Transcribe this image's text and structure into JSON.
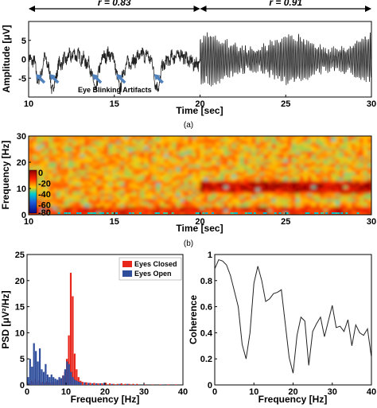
{
  "chart_data": [
    {
      "id": "a",
      "type": "line",
      "caption": "(a)",
      "xlabel": "Time [sec]",
      "ylabel": "Amplitude [μV]",
      "xlim": [
        10,
        30
      ],
      "xticks": [
        10,
        15,
        20,
        25,
        30
      ],
      "ylim": [
        -10,
        10
      ],
      "yticks": [
        -5,
        0,
        5
      ],
      "ytick_labels": [
        "-5",
        "0",
        "5"
      ],
      "annotation": "Eye Blinking Artifacts",
      "blink_times": [
        10.6,
        11.4,
        13.9,
        15.3,
        17.5
      ],
      "segments": [
        {
          "label": "r = 0.83",
          "x_start": 10,
          "x_end": 20
        },
        {
          "label": "r = 0.91",
          "x_start": 20,
          "x_end": 30
        }
      ],
      "arrow_color": "#4f81bd",
      "line_color": "#222222"
    },
    {
      "id": "b",
      "type": "heatmap",
      "caption": "(b)",
      "xlabel": "Time [sec]",
      "ylabel": "Frequency [Hz]",
      "xlim": [
        10,
        30
      ],
      "xticks": [
        10,
        15,
        20,
        25,
        30
      ],
      "ylim": [
        0,
        30
      ],
      "yticks": [
        0,
        10,
        20,
        30
      ],
      "colorbar_ticks": [
        0,
        -20,
        -40,
        -60,
        -80
      ],
      "colorbar_labels": [
        "0",
        "-20",
        "-40",
        "-60",
        "-80"
      ]
    },
    {
      "id": "c",
      "type": "bar",
      "xlabel": "Frequency [Hz]",
      "ylabel": "PSD [μV²/Hz]",
      "xlim": [
        0,
        40
      ],
      "xticks": [
        0,
        10,
        20,
        30,
        40
      ],
      "ylim": [
        0,
        25
      ],
      "yticks": [
        0,
        5,
        10,
        15,
        20,
        25
      ],
      "legend_position": "top-right",
      "series": [
        {
          "name": "Eyes Closed",
          "color": "#e8261b",
          "x": [
            0.5,
            1,
            1.5,
            2,
            2.5,
            3,
            3.5,
            4,
            4.5,
            5,
            5.5,
            6,
            6.5,
            7,
            7.5,
            8,
            8.5,
            9,
            9.5,
            10,
            10.5,
            11,
            11.5,
            12,
            12.5,
            13,
            13.5,
            14,
            15,
            16,
            17,
            18,
            19,
            20,
            21,
            22,
            23,
            24,
            25,
            26,
            27,
            28,
            30,
            32,
            34,
            36,
            38
          ],
          "values": [
            0.3,
            0.8,
            0.6,
            1.2,
            0.7,
            0.9,
            0.5,
            0.6,
            0.4,
            0.7,
            0.5,
            0.4,
            0.6,
            0.5,
            0.7,
            0.9,
            1.2,
            1.8,
            2.5,
            5.0,
            9.5,
            21.5,
            17.0,
            6.0,
            3.0,
            1.5,
            0.8,
            0.6,
            0.5,
            0.4,
            0.4,
            0.3,
            0.3,
            0.4,
            0.3,
            0.2,
            0.2,
            0.3,
            0.2,
            0.2,
            0.2,
            0.2,
            0.1,
            0.1,
            0.1,
            0.1,
            0.1
          ]
        },
        {
          "name": "Eyes Open",
          "color": "#2e4e9c",
          "x": [
            0.5,
            1,
            1.5,
            2,
            2.5,
            3,
            3.5,
            4,
            4.5,
            5,
            5.5,
            6,
            6.5,
            7,
            7.5,
            8,
            8.5,
            9,
            9.5,
            10,
            10.5,
            11,
            11.5,
            12,
            12.5,
            13,
            13.5,
            14,
            15,
            16,
            17,
            18,
            19,
            20,
            22,
            24,
            26,
            28,
            30,
            35
          ],
          "values": [
            1.5,
            5.0,
            3.5,
            8.0,
            6.5,
            4.5,
            7.0,
            3.0,
            2.5,
            4.0,
            2.0,
            1.5,
            2.0,
            1.5,
            1.2,
            1.0,
            1.5,
            1.3,
            1.8,
            3.0,
            4.5,
            4.0,
            2.5,
            1.5,
            1.0,
            0.8,
            0.6,
            0.5,
            0.5,
            0.4,
            0.3,
            0.3,
            0.3,
            0.4,
            0.2,
            0.2,
            0.2,
            0.1,
            0.1,
            0.1
          ]
        }
      ]
    },
    {
      "id": "d",
      "type": "line",
      "xlabel": "Frequency [Hz]",
      "ylabel": "Coherence",
      "xlim": [
        0,
        40
      ],
      "xticks": [
        0,
        10,
        20,
        30,
        40
      ],
      "ylim": [
        0,
        1
      ],
      "yticks": [
        0,
        0.2,
        0.4,
        0.6,
        0.8,
        1
      ],
      "ytick_labels": [
        "0",
        "0.2",
        "0.4",
        "0.6",
        "0.8",
        "1"
      ],
      "series": [
        {
          "name": "",
          "color": "#222222",
          "x": [
            0,
            1,
            2,
            3,
            4,
            5,
            6,
            7,
            8,
            9,
            10,
            11,
            12,
            13,
            14,
            15,
            16,
            17,
            18,
            19,
            20,
            21,
            22,
            23,
            24,
            25,
            26,
            27,
            28,
            29,
            30,
            31,
            32,
            33,
            34,
            35,
            36,
            37,
            38,
            39,
            40
          ],
          "values": [
            0.89,
            0.96,
            0.95,
            0.92,
            0.84,
            0.72,
            0.6,
            0.31,
            0.2,
            0.4,
            0.78,
            0.91,
            0.8,
            0.64,
            0.66,
            0.7,
            0.71,
            0.73,
            0.47,
            0.21,
            0.09,
            0.38,
            0.52,
            0.49,
            0.15,
            0.41,
            0.47,
            0.52,
            0.37,
            0.49,
            0.61,
            0.44,
            0.45,
            0.41,
            0.5,
            0.3,
            0.46,
            0.4,
            0.38,
            0.43,
            0.21
          ]
        }
      ]
    }
  ]
}
